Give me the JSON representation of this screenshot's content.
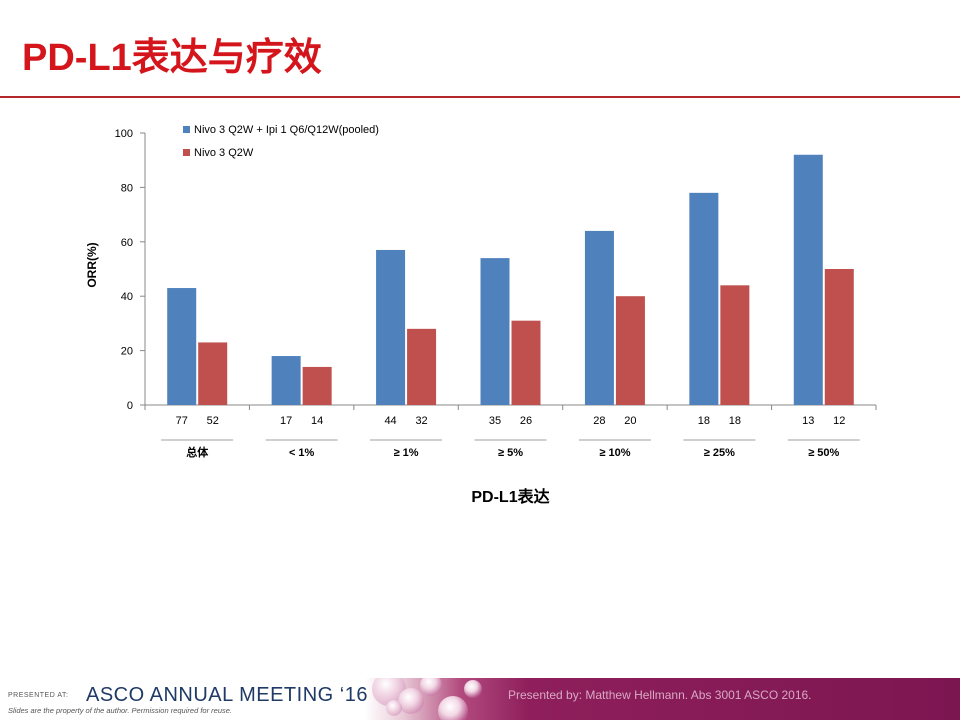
{
  "slide": {
    "title": "PD-L1表达与疗效"
  },
  "footer": {
    "presented_at": "PRESENTED AT:",
    "meeting": "ASCO ANNUAL MEETING ‘16",
    "disclaimer": "Slides are the property of the author. Permission required for reuse.",
    "credit": "Presented by: Matthew Hellmann. Abs 3001 ASCO 2016."
  },
  "colors": {
    "title_red": "#d4151c",
    "series_blue": "#4f81bd",
    "series_red": "#c0504d"
  },
  "chart_data": {
    "type": "bar",
    "title": "",
    "xlabel": "PD-L1表达",
    "ylabel": "ORR(%)",
    "ylim": [
      0,
      100
    ],
    "yticks": [
      0,
      20,
      40,
      60,
      80,
      100
    ],
    "grid": false,
    "legend_position": "top-left",
    "categories": [
      "总体",
      "< 1%",
      "≥ 1%",
      "≥ 5%",
      "≥  10%",
      "≥  25%",
      "≥  50%"
    ],
    "series": [
      {
        "name": "Nivo 3 Q2W + Ipi 1 Q6/Q12W(pooled)",
        "color": "#4f81bd",
        "values": [
          43,
          18,
          57,
          54,
          64,
          78,
          92
        ],
        "n": [
          "77",
          "17",
          "44",
          "35",
          "28",
          "18",
          "13"
        ]
      },
      {
        "name": "Nivo 3 Q2W",
        "color": "#c0504d",
        "values": [
          23,
          14,
          28,
          31,
          40,
          44,
          50
        ],
        "n": [
          "52",
          "14",
          "32",
          "26",
          "20",
          "18",
          "12"
        ]
      }
    ]
  }
}
